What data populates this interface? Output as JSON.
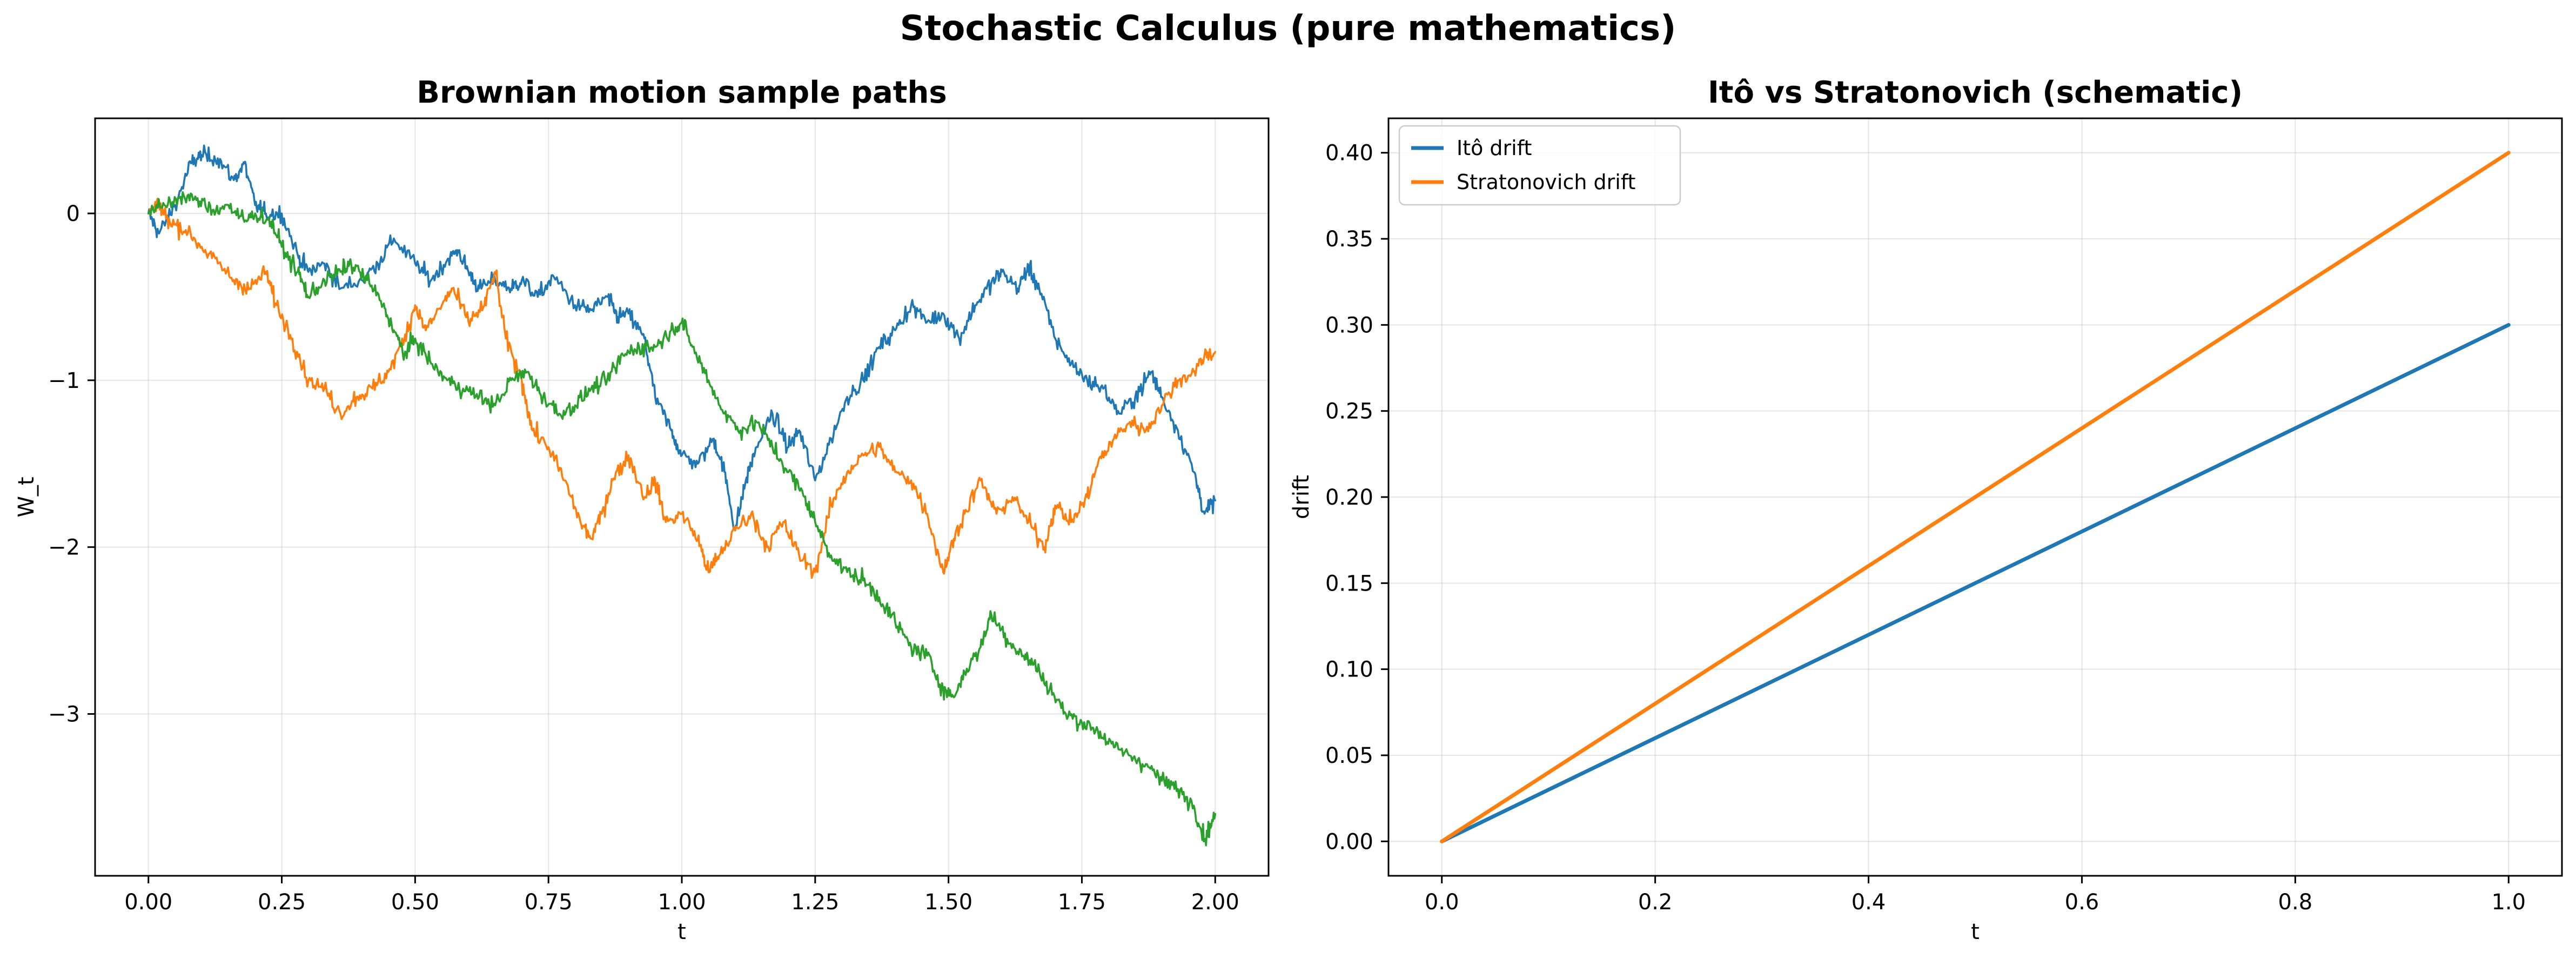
{
  "figure": {
    "title": "Stochastic Calculus (pure mathematics)"
  },
  "colors": {
    "blue": "#1f77b4",
    "orange": "#ff7f0e",
    "green": "#2ca02c"
  },
  "chart_data": [
    {
      "type": "line",
      "title": "Brownian motion sample paths",
      "xlabel": "t",
      "ylabel": "W_t",
      "xlim": [
        -0.1,
        2.1
      ],
      "ylim": [
        -3.97,
        0.57
      ],
      "xticks": [
        0.0,
        0.25,
        0.5,
        0.75,
        1.0,
        1.25,
        1.5,
        1.75,
        2.0
      ],
      "xtick_labels": [
        "0.00",
        "0.25",
        "0.50",
        "0.75",
        "1.00",
        "1.25",
        "1.50",
        "1.75",
        "2.00"
      ],
      "yticks": [
        0,
        -1,
        -2,
        -3
      ],
      "ytick_labels": [
        "0",
        "−1",
        "−2",
        "−3"
      ],
      "grid": true,
      "series": [
        {
          "color": "#1f77b4",
          "points": [
            [
              0.0,
              0.0
            ],
            [
              0.02,
              -0.12
            ],
            [
              0.05,
              0.05
            ],
            [
              0.08,
              0.3
            ],
            [
              0.1,
              0.35
            ],
            [
              0.13,
              0.33
            ],
            [
              0.16,
              0.2
            ],
            [
              0.18,
              0.3
            ],
            [
              0.2,
              0.05
            ],
            [
              0.22,
              0.0
            ],
            [
              0.25,
              0.0
            ],
            [
              0.28,
              -0.25
            ],
            [
              0.3,
              -0.35
            ],
            [
              0.33,
              -0.3
            ],
            [
              0.36,
              -0.45
            ],
            [
              0.4,
              -0.4
            ],
            [
              0.43,
              -0.3
            ],
            [
              0.46,
              -0.15
            ],
            [
              0.5,
              -0.3
            ],
            [
              0.53,
              -0.4
            ],
            [
              0.56,
              -0.28
            ],
            [
              0.58,
              -0.22
            ],
            [
              0.6,
              -0.35
            ],
            [
              0.62,
              -0.45
            ],
            [
              0.65,
              -0.4
            ],
            [
              0.68,
              -0.45
            ],
            [
              0.7,
              -0.4
            ],
            [
              0.73,
              -0.5
            ],
            [
              0.76,
              -0.38
            ],
            [
              0.8,
              -0.55
            ],
            [
              0.83,
              -0.58
            ],
            [
              0.86,
              -0.5
            ],
            [
              0.88,
              -0.62
            ],
            [
              0.9,
              -0.6
            ],
            [
              0.93,
              -0.75
            ],
            [
              0.95,
              -1.1
            ],
            [
              0.98,
              -1.3
            ],
            [
              1.0,
              -1.45
            ],
            [
              1.03,
              -1.5
            ],
            [
              1.06,
              -1.35
            ],
            [
              1.08,
              -1.55
            ],
            [
              1.1,
              -1.9
            ],
            [
              1.12,
              -1.6
            ],
            [
              1.14,
              -1.4
            ],
            [
              1.17,
              -1.2
            ],
            [
              1.2,
              -1.4
            ],
            [
              1.22,
              -1.3
            ],
            [
              1.25,
              -1.6
            ],
            [
              1.28,
              -1.35
            ],
            [
              1.31,
              -1.1
            ],
            [
              1.34,
              -1.0
            ],
            [
              1.37,
              -0.8
            ],
            [
              1.4,
              -0.7
            ],
            [
              1.43,
              -0.55
            ],
            [
              1.46,
              -0.65
            ],
            [
              1.49,
              -0.6
            ],
            [
              1.52,
              -0.75
            ],
            [
              1.55,
              -0.55
            ],
            [
              1.58,
              -0.42
            ],
            [
              1.6,
              -0.35
            ],
            [
              1.63,
              -0.45
            ],
            [
              1.65,
              -0.32
            ],
            [
              1.67,
              -0.45
            ],
            [
              1.7,
              -0.75
            ],
            [
              1.73,
              -0.9
            ],
            [
              1.76,
              -1.0
            ],
            [
              1.79,
              -1.05
            ],
            [
              1.82,
              -1.2
            ],
            [
              1.85,
              -1.1
            ],
            [
              1.88,
              -0.95
            ],
            [
              1.9,
              -1.1
            ],
            [
              1.93,
              -1.3
            ],
            [
              1.96,
              -1.55
            ],
            [
              1.98,
              -1.8
            ],
            [
              2.0,
              -1.72
            ]
          ]
        },
        {
          "color": "#ff7f0e",
          "points": [
            [
              0.0,
              0.0
            ],
            [
              0.02,
              0.05
            ],
            [
              0.04,
              -0.05
            ],
            [
              0.07,
              -0.1
            ],
            [
              0.1,
              -0.2
            ],
            [
              0.13,
              -0.3
            ],
            [
              0.16,
              -0.4
            ],
            [
              0.19,
              -0.45
            ],
            [
              0.22,
              -0.35
            ],
            [
              0.24,
              -0.55
            ],
            [
              0.27,
              -0.75
            ],
            [
              0.3,
              -1.0
            ],
            [
              0.33,
              -1.05
            ],
            [
              0.36,
              -1.2
            ],
            [
              0.39,
              -1.1
            ],
            [
              0.42,
              -1.05
            ],
            [
              0.45,
              -0.95
            ],
            [
              0.48,
              -0.75
            ],
            [
              0.5,
              -0.55
            ],
            [
              0.52,
              -0.7
            ],
            [
              0.55,
              -0.55
            ],
            [
              0.57,
              -0.45
            ],
            [
              0.6,
              -0.65
            ],
            [
              0.63,
              -0.55
            ],
            [
              0.65,
              -0.35
            ],
            [
              0.67,
              -0.75
            ],
            [
              0.7,
              -1.0
            ],
            [
              0.72,
              -1.3
            ],
            [
              0.75,
              -1.4
            ],
            [
              0.78,
              -1.6
            ],
            [
              0.81,
              -1.85
            ],
            [
              0.83,
              -1.95
            ],
            [
              0.85,
              -1.8
            ],
            [
              0.87,
              -1.6
            ],
            [
              0.9,
              -1.45
            ],
            [
              0.93,
              -1.7
            ],
            [
              0.95,
              -1.6
            ],
            [
              0.97,
              -1.85
            ],
            [
              1.0,
              -1.8
            ],
            [
              1.03,
              -1.95
            ],
            [
              1.05,
              -2.15
            ],
            [
              1.07,
              -2.05
            ],
            [
              1.1,
              -1.9
            ],
            [
              1.13,
              -1.8
            ],
            [
              1.16,
              -2.0
            ],
            [
              1.19,
              -1.85
            ],
            [
              1.22,
              -2.05
            ],
            [
              1.25,
              -2.15
            ],
            [
              1.28,
              -1.75
            ],
            [
              1.31,
              -1.55
            ],
            [
              1.34,
              -1.45
            ],
            [
              1.37,
              -1.4
            ],
            [
              1.4,
              -1.55
            ],
            [
              1.43,
              -1.6
            ],
            [
              1.46,
              -1.8
            ],
            [
              1.49,
              -2.15
            ],
            [
              1.51,
              -1.95
            ],
            [
              1.53,
              -1.8
            ],
            [
              1.56,
              -1.6
            ],
            [
              1.59,
              -1.8
            ],
            [
              1.62,
              -1.7
            ],
            [
              1.65,
              -1.85
            ],
            [
              1.68,
              -2.0
            ],
            [
              1.7,
              -1.75
            ],
            [
              1.73,
              -1.85
            ],
            [
              1.76,
              -1.7
            ],
            [
              1.78,
              -1.5
            ],
            [
              1.81,
              -1.35
            ],
            [
              1.84,
              -1.25
            ],
            [
              1.87,
              -1.3
            ],
            [
              1.9,
              -1.15
            ],
            [
              1.93,
              -1.0
            ],
            [
              1.96,
              -0.95
            ],
            [
              1.98,
              -0.85
            ],
            [
              2.0,
              -0.83
            ]
          ]
        },
        {
          "color": "#2ca02c",
          "points": [
            [
              0.0,
              0.0
            ],
            [
              0.03,
              0.05
            ],
            [
              0.06,
              0.1
            ],
            [
              0.09,
              0.08
            ],
            [
              0.12,
              0.02
            ],
            [
              0.15,
              0.05
            ],
            [
              0.18,
              -0.05
            ],
            [
              0.2,
              0.0
            ],
            [
              0.23,
              -0.05
            ],
            [
              0.25,
              -0.2
            ],
            [
              0.28,
              -0.35
            ],
            [
              0.3,
              -0.5
            ],
            [
              0.33,
              -0.4
            ],
            [
              0.36,
              -0.35
            ],
            [
              0.38,
              -0.3
            ],
            [
              0.41,
              -0.4
            ],
            [
              0.44,
              -0.55
            ],
            [
              0.46,
              -0.7
            ],
            [
              0.48,
              -0.85
            ],
            [
              0.5,
              -0.75
            ],
            [
              0.53,
              -0.9
            ],
            [
              0.56,
              -1.0
            ],
            [
              0.59,
              -1.05
            ],
            [
              0.62,
              -1.1
            ],
            [
              0.65,
              -1.15
            ],
            [
              0.68,
              -1.0
            ],
            [
              0.71,
              -0.95
            ],
            [
              0.74,
              -1.1
            ],
            [
              0.77,
              -1.2
            ],
            [
              0.8,
              -1.15
            ],
            [
              0.83,
              -1.05
            ],
            [
              0.86,
              -1.0
            ],
            [
              0.89,
              -0.85
            ],
            [
              0.92,
              -0.8
            ],
            [
              0.95,
              -0.8
            ],
            [
              0.98,
              -0.7
            ],
            [
              1.0,
              -0.65
            ],
            [
              1.02,
              -0.8
            ],
            [
              1.05,
              -1.0
            ],
            [
              1.08,
              -1.2
            ],
            [
              1.11,
              -1.3
            ],
            [
              1.14,
              -1.25
            ],
            [
              1.17,
              -1.4
            ],
            [
              1.2,
              -1.55
            ],
            [
              1.23,
              -1.7
            ],
            [
              1.25,
              -1.85
            ],
            [
              1.28,
              -2.05
            ],
            [
              1.31,
              -2.15
            ],
            [
              1.34,
              -2.2
            ],
            [
              1.37,
              -2.3
            ],
            [
              1.4,
              -2.45
            ],
            [
              1.43,
              -2.6
            ],
            [
              1.46,
              -2.65
            ],
            [
              1.49,
              -2.85
            ],
            [
              1.51,
              -2.9
            ],
            [
              1.53,
              -2.75
            ],
            [
              1.56,
              -2.6
            ],
            [
              1.58,
              -2.4
            ],
            [
              1.61,
              -2.55
            ],
            [
              1.64,
              -2.65
            ],
            [
              1.66,
              -2.7
            ],
            [
              1.69,
              -2.85
            ],
            [
              1.72,
              -3.0
            ],
            [
              1.75,
              -3.05
            ],
            [
              1.78,
              -3.1
            ],
            [
              1.81,
              -3.2
            ],
            [
              1.84,
              -3.25
            ],
            [
              1.87,
              -3.3
            ],
            [
              1.9,
              -3.4
            ],
            [
              1.93,
              -3.45
            ],
            [
              1.96,
              -3.55
            ],
            [
              1.98,
              -3.75
            ],
            [
              2.0,
              -3.6
            ]
          ]
        }
      ]
    },
    {
      "type": "line",
      "title": "Itô vs Stratonovich (schematic)",
      "xlabel": "t",
      "ylabel": "drift",
      "xlim": [
        -0.05,
        1.05
      ],
      "ylim": [
        -0.02,
        0.42
      ],
      "xticks": [
        0.0,
        0.2,
        0.4,
        0.6,
        0.8,
        1.0
      ],
      "xtick_labels": [
        "0.0",
        "0.2",
        "0.4",
        "0.6",
        "0.8",
        "1.0"
      ],
      "yticks": [
        0.0,
        0.05,
        0.1,
        0.15,
        0.2,
        0.25,
        0.3,
        0.35,
        0.4
      ],
      "ytick_labels": [
        "0.00",
        "0.05",
        "0.10",
        "0.15",
        "0.20",
        "0.25",
        "0.30",
        "0.35",
        "0.40"
      ],
      "grid": true,
      "legend": "top-left",
      "series": [
        {
          "name": "Itô drift",
          "color": "#1f77b4",
          "points": [
            [
              0.0,
              0.0
            ],
            [
              1.0,
              0.3
            ]
          ]
        },
        {
          "name": "Stratonovich drift",
          "color": "#ff7f0e",
          "points": [
            [
              0.0,
              0.0
            ],
            [
              1.0,
              0.4
            ]
          ]
        }
      ]
    }
  ]
}
